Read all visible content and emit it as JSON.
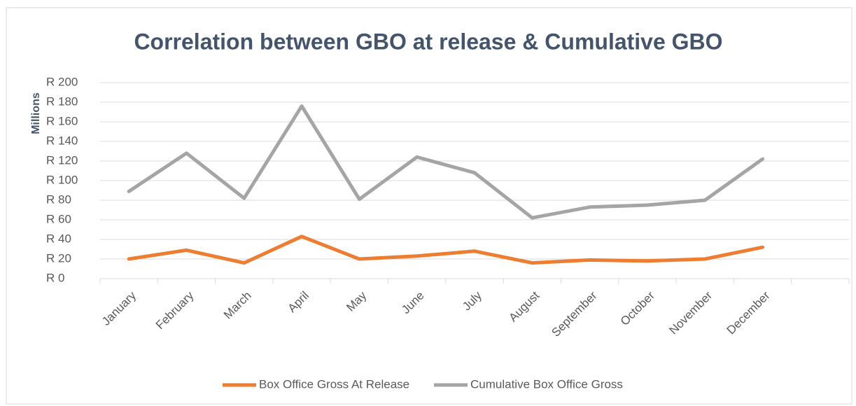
{
  "chart_data": {
    "type": "line",
    "title": "Correlation between GBO at release & Cumulative GBO",
    "y_label": "Millions",
    "categories": [
      "January",
      "February",
      "March",
      "April",
      "May",
      "June",
      "July",
      "August",
      "September",
      "October",
      "November",
      "December",
      null
    ],
    "series": [
      {
        "name": "Box Office Gross At Release",
        "color": "#ed7d31",
        "values": [
          20,
          29,
          16,
          43,
          20,
          23,
          28,
          16,
          19,
          18,
          20,
          32,
          null
        ]
      },
      {
        "name": "Cumulative Box Office Gross",
        "color": "#a5a5a5",
        "values": [
          89,
          128,
          82,
          176,
          81,
          124,
          108,
          62,
          73,
          75,
          80,
          122,
          null
        ]
      }
    ],
    "ylim": [
      0,
      200
    ],
    "yticks": [
      {
        "value": 0,
        "label": "R 0"
      },
      {
        "value": 20,
        "label": "R 20"
      },
      {
        "value": 40,
        "label": "R 40"
      },
      {
        "value": 60,
        "label": "R 60"
      },
      {
        "value": 80,
        "label": "R 80"
      },
      {
        "value": 100,
        "label": "R 100"
      },
      {
        "value": 120,
        "label": "R 120"
      },
      {
        "value": 140,
        "label": "R 140"
      },
      {
        "value": 160,
        "label": "R 160"
      },
      {
        "value": 180,
        "label": "R 180"
      },
      {
        "value": 200,
        "label": "R 200"
      }
    ],
    "grid": true,
    "legend": "bottom"
  }
}
